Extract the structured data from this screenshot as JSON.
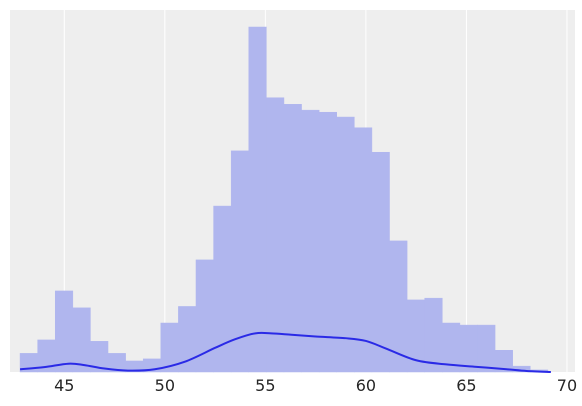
{
  "chart_data": {
    "type": "bar",
    "xlim": [
      42.3,
      70.4
    ],
    "ylim": [
      0,
      1
    ],
    "grid": "vertical",
    "x_ticks": [
      {
        "value": 45,
        "label": "45"
      },
      {
        "value": 50,
        "label": "50"
      },
      {
        "value": 55,
        "label": "55"
      },
      {
        "value": 60,
        "label": "60"
      },
      {
        "value": 65,
        "label": "65"
      },
      {
        "value": 70,
        "label": "70"
      }
    ],
    "bins": {
      "start": 42.8,
      "width": 0.875,
      "heights": [
        0.054,
        0.093,
        0.235,
        0.186,
        0.089,
        0.054,
        0.032,
        0.038,
        0.142,
        0.19,
        0.325,
        0.481,
        0.641,
        1.0,
        0.795,
        0.776,
        0.759,
        0.753,
        0.739,
        0.708,
        0.637,
        0.38,
        0.209,
        0.214,
        0.142,
        0.136,
        0.136,
        0.063,
        0.017,
        0.006
      ]
    },
    "kde": {
      "x": [
        42.8,
        44.0,
        45.2,
        46.0,
        47.0,
        48.2,
        49.5,
        51.0,
        52.5,
        53.5,
        54.5,
        55.3,
        56.3,
        57.5,
        59.0,
        60.0,
        61.0,
        62.5,
        64.0,
        65.5,
        67.0,
        68.0,
        69.2
      ],
      "y": [
        0.008,
        0.014,
        0.024,
        0.02,
        0.01,
        0.004,
        0.008,
        0.03,
        0.07,
        0.095,
        0.112,
        0.112,
        0.108,
        0.103,
        0.098,
        0.09,
        0.068,
        0.034,
        0.022,
        0.015,
        0.008,
        0.003,
        0.0
      ]
    },
    "colors": {
      "bar": "#b0b6ee",
      "line": "#2a2ae6",
      "background": "#eeeeee",
      "grid": "#ffffff"
    }
  }
}
